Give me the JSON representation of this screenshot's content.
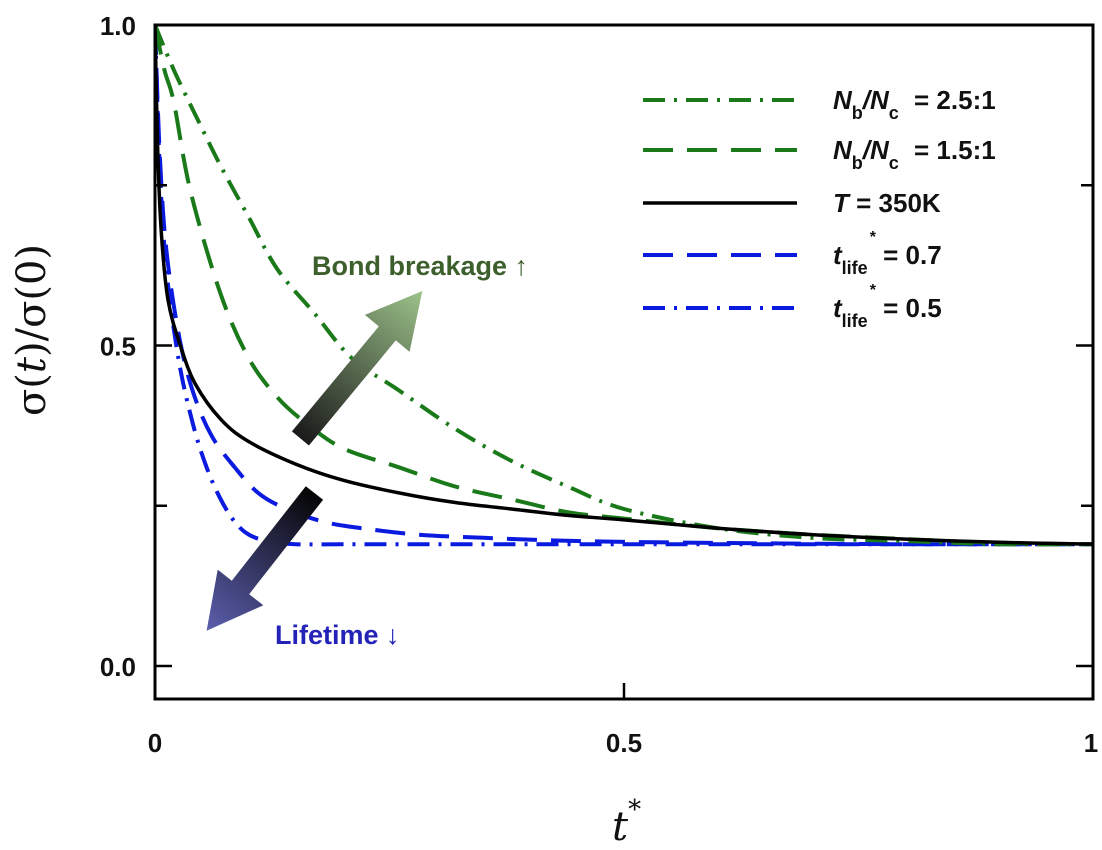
{
  "chart_data": {
    "type": "line",
    "title": "",
    "xlabel": "t*",
    "ylabel": "σ(t)/σ(0)",
    "xlim": [
      0,
      1
    ],
    "ylim": [
      -0.05,
      1.0
    ],
    "grid": false,
    "legend_position": "top-right",
    "x_ticks": [
      {
        "value": 0,
        "label": "0"
      },
      {
        "value": 0.5,
        "label": "0.5"
      },
      {
        "value": 1,
        "label": "1"
      }
    ],
    "y_ticks": [
      {
        "value": 0.0,
        "label": "0.0"
      },
      {
        "value": 0.25,
        "label": ""
      },
      {
        "value": 0.5,
        "label": "0.5"
      },
      {
        "value": 0.75,
        "label": ""
      },
      {
        "value": 1.0,
        "label": "1.0"
      }
    ],
    "series": [
      {
        "name": "Nb/Nc = 2.5:1",
        "legend": {
          "main": "N",
          "sub1": "b",
          "mid": "/N",
          "sub2": "c",
          "rest": " = 2.5:1",
          "sup": ""
        },
        "color": "#1a7a1a",
        "style": "dashdot",
        "x": [
          0,
          0.02,
          0.043,
          0.07,
          0.1,
          0.13,
          0.17,
          0.21,
          0.26,
          0.32,
          0.38,
          0.44,
          0.5,
          0.6,
          0.7,
          0.8,
          0.9,
          1.0
        ],
        "y": [
          1.0,
          0.93,
          0.86,
          0.78,
          0.7,
          0.62,
          0.55,
          0.48,
          0.43,
          0.37,
          0.32,
          0.28,
          0.245,
          0.215,
          0.2,
          0.195,
          0.19,
          0.19
        ]
      },
      {
        "name": "Nb/Nc = 1.5:1",
        "legend": {
          "main": "N",
          "sub1": "b",
          "mid": "/N",
          "sub2": "c",
          "rest": " = 1.5:1",
          "sup": ""
        },
        "color": "#1a7a1a",
        "style": "dashed",
        "x": [
          0,
          0.01,
          0.02,
          0.038,
          0.07,
          0.1,
          0.13,
          0.16,
          0.2,
          0.26,
          0.32,
          0.38,
          0.44,
          0.5,
          0.6,
          0.7,
          0.8,
          0.9,
          1.0
        ],
        "y": [
          1.0,
          0.93,
          0.88,
          0.74,
          0.58,
          0.48,
          0.42,
          0.38,
          0.34,
          0.31,
          0.28,
          0.26,
          0.24,
          0.23,
          0.215,
          0.205,
          0.198,
          0.192,
          0.19
        ]
      },
      {
        "name": "T = 350K",
        "legend": {
          "main": "T",
          "sub1": "",
          "mid": "",
          "sub2": "",
          "rest": " = 350K",
          "sup": ""
        },
        "color": "#000000",
        "style": "solid",
        "x": [
          0,
          0.003,
          0.007,
          0.014,
          0.027,
          0.043,
          0.07,
          0.1,
          0.15,
          0.2,
          0.26,
          0.32,
          0.38,
          0.44,
          0.5,
          0.6,
          0.7,
          0.8,
          0.9,
          1.0
        ],
        "y": [
          1.0,
          0.8,
          0.67,
          0.57,
          0.5,
          0.44,
          0.385,
          0.35,
          0.315,
          0.29,
          0.27,
          0.255,
          0.245,
          0.235,
          0.228,
          0.215,
          0.205,
          0.198,
          0.193,
          0.19
        ]
      },
      {
        "name": "tlife* = 0.7",
        "legend": {
          "main": "t",
          "sub1": "life",
          "mid": "",
          "sub2": "",
          "rest": " = 0.7",
          "sup": "*"
        },
        "color": "#0a1adf",
        "style": "dashed",
        "x": [
          0,
          0.005,
          0.012,
          0.025,
          0.04,
          0.06,
          0.085,
          0.11,
          0.14,
          0.18,
          0.22,
          0.28,
          0.35,
          0.45,
          0.6,
          0.8,
          1.0
        ],
        "y": [
          1.0,
          0.8,
          0.65,
          0.52,
          0.43,
          0.36,
          0.31,
          0.27,
          0.245,
          0.225,
          0.215,
          0.205,
          0.2,
          0.195,
          0.192,
          0.19,
          0.19
        ]
      },
      {
        "name": "tlife* = 0.5",
        "legend": {
          "main": "t",
          "sub1": "life",
          "mid": "",
          "sub2": "",
          "rest": " = 0.5",
          "sup": "*"
        },
        "color": "#0a1adf",
        "style": "dashdot",
        "x": [
          0,
          0.005,
          0.012,
          0.025,
          0.04,
          0.055,
          0.07,
          0.085,
          0.1,
          0.12,
          0.15,
          0.2,
          0.3,
          0.5,
          0.7,
          1.0
        ],
        "y": [
          1.0,
          0.78,
          0.62,
          0.48,
          0.38,
          0.31,
          0.26,
          0.225,
          0.205,
          0.195,
          0.19,
          0.19,
          0.19,
          0.19,
          0.19,
          0.19
        ]
      }
    ],
    "annotations": [
      {
        "text": "Bond breakage ↑",
        "color": "#3d5f2c",
        "arrow_from": [
          0.155,
          0.355
        ],
        "arrow_to": [
          0.285,
          0.585
        ],
        "arrow_colors": [
          "#1a1a1a",
          "#9cc28a"
        ]
      },
      {
        "text": "Lifetime ↓",
        "color": "#2323b8",
        "arrow_from": [
          0.17,
          0.27
        ],
        "arrow_to": [
          0.055,
          0.055
        ],
        "arrow_colors": [
          "#050505",
          "#5c5eae"
        ]
      }
    ]
  }
}
